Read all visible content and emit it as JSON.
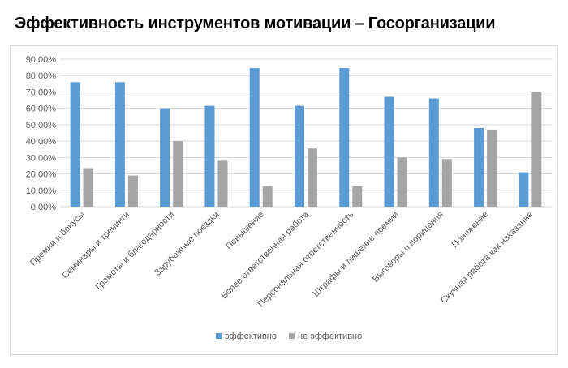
{
  "title": "Эффективность инструментов мотивации – Госорганизации",
  "colors": {
    "series_effective": "#5b9bd5",
    "series_not_effective": "#a5a5a5",
    "gridline": "#d9d9d9",
    "axis_text": "#595959"
  },
  "chart_data": {
    "type": "bar",
    "title": "",
    "xlabel": "",
    "ylabel": "",
    "ylim": [
      0,
      90
    ],
    "y_ticks": [
      "0,00%",
      "10,00%",
      "20,00%",
      "30,00%",
      "40,00%",
      "50,00%",
      "60,00%",
      "70,00%",
      "80,00%",
      "90,00%"
    ],
    "grid": true,
    "legend_position": "bottom",
    "categories": [
      "Премии и бонусы",
      "Семинары и тренинги",
      "Грамоты и благодарности",
      "Зарубежные поездки",
      "Повышение",
      "Более ответственная работа",
      "Персональная ответственность",
      "Штрафы и лишение премии",
      "Выговоры и порицания",
      "Понижение",
      "Скучная работа как наказание"
    ],
    "series": [
      {
        "name": "эффективно",
        "values": [
          76,
          76,
          60,
          61.5,
          84.5,
          61.5,
          84.5,
          67,
          66,
          48,
          21
        ]
      },
      {
        "name": "не эффективно",
        "values": [
          23.5,
          19,
          40,
          28,
          12.5,
          35.5,
          12.5,
          30,
          29,
          47,
          70
        ]
      }
    ]
  }
}
